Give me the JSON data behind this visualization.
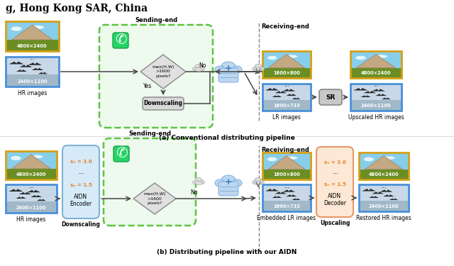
{
  "title_text": "g, Hong Kong SAR, China",
  "caption_a": "(a) Conventional distributing pipeline",
  "caption_b": "(b) Distributing pipeline with our AIDN",
  "bg_color": "#ffffff",
  "orange_border": "#d4a017",
  "blue_border": "#4a90d9",
  "panel_a": {
    "sending_end_label": "Sending-end",
    "receiving_end_label": "Receiving-end",
    "hr_label": "HR images",
    "lr_label": "LR images",
    "upscaled_label": "Upscaled HR images",
    "img1_top_text": "4800×2400",
    "img1_bot_text": "2400×1100",
    "img2_top_text": "1600×800",
    "img2_bot_text": "1600×733",
    "img3_top_text": "4800×2400",
    "img3_bot_text": "2400×1100",
    "diamond_text": "max(H,W)\n>1600\npixels?",
    "no_label": "No",
    "yes_label": "Yes",
    "downscaling_text": "Downscaling",
    "sr_text": "SR"
  },
  "panel_b": {
    "sending_end_label": "Sending-end",
    "receiving_end_label": "Receiving-end",
    "hr_label": "HR images",
    "embedded_label": "Embedded LR images",
    "upscaling_label": "Upscaling",
    "restored_label": "Restored HR images",
    "downscaling_label": "Downscaling",
    "img1_top_text": "4800×2400",
    "img1_bot_text": "2400×1100",
    "img2_top_text": "1600×800",
    "img2_bot_text": "1600×733",
    "img3_top_text": "4800×2400",
    "img3_bot_text": "2400×1100",
    "encoder_s1": "s₁ = 3.0",
    "encoder_sn": "sₙ = 1.5",
    "encoder_text": "AIDN\nEncoder",
    "decoder_s1": "s₁ = 3.0",
    "decoder_sn": "sₙ = 1.5",
    "decoder_text": "AIDN\nDecoder",
    "diamond_text": "max(H,W)\n>1600\npixels?",
    "no_label": "No"
  }
}
